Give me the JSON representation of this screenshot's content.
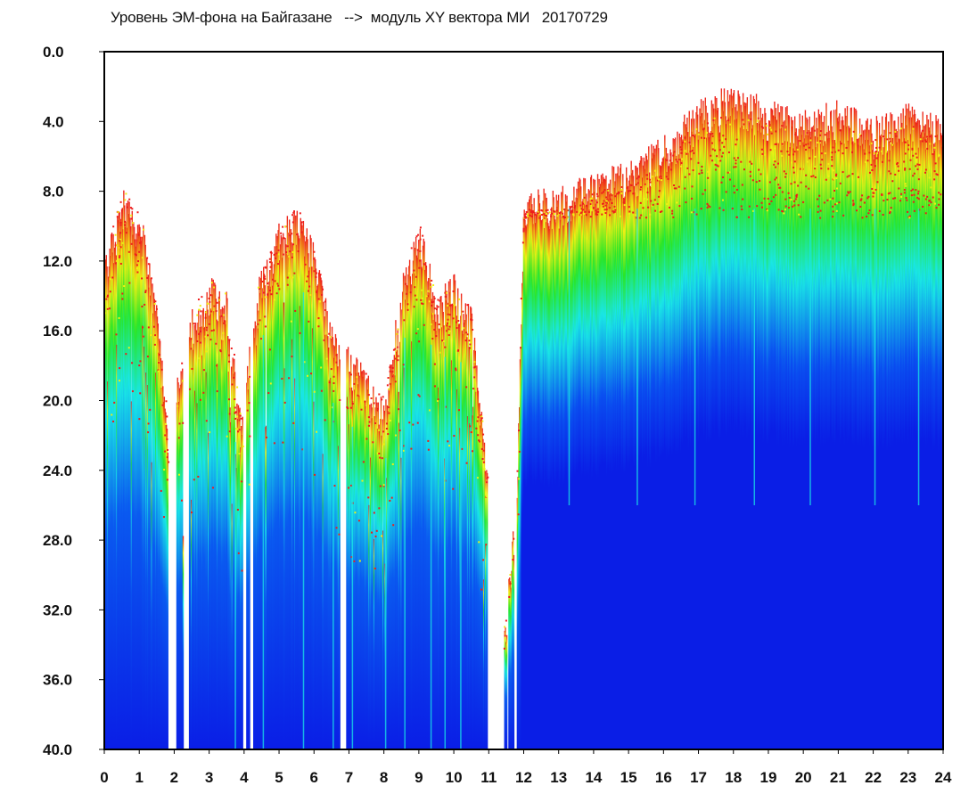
{
  "chart_title": "Уровень ЭМ-фона на Байгазане   -->  модуль XY вектора МИ   20170729",
  "colors": {
    "low": "#0a1ee6",
    "mid_low": "#19e6e6",
    "mid": "#28e628",
    "mid_high": "#f0f014",
    "high": "#ee1c1c",
    "background": "#ffffff",
    "frame": "#000000"
  },
  "chart_data": {
    "type": "heatmap",
    "title": "Уровень ЭМ-фона на Байгазане   -->  модуль XY вектора МИ   20170729",
    "xlabel": "",
    "ylabel": "",
    "xlim": [
      0,
      24
    ],
    "ylim": [
      0,
      40
    ],
    "y_inverted": true,
    "grid": false,
    "x_ticks": [
      "0",
      "1",
      "2",
      "3",
      "4",
      "5",
      "6",
      "7",
      "8",
      "9",
      "10",
      "11",
      "12",
      "13",
      "14",
      "15",
      "16",
      "17",
      "18",
      "19",
      "20",
      "21",
      "22",
      "23",
      "24"
    ],
    "y_ticks": [
      "0.0",
      "4.0",
      "8.0",
      "12.0",
      "16.0",
      "20.0",
      "24.0",
      "28.0",
      "32.0",
      "36.0",
      "40.0"
    ],
    "color_scale": [
      "blue",
      "cyan",
      "green",
      "yellow",
      "red"
    ],
    "signal_top_by_hour": {
      "x": [
        0,
        0.5,
        1,
        1.5,
        1.8,
        2.5,
        3,
        3.5,
        3.9,
        4.4,
        5,
        5.5,
        6,
        6.5,
        7.3,
        8,
        8.5,
        9,
        9.5,
        10,
        10.5,
        11,
        11.5,
        11.8,
        12,
        13,
        14,
        15,
        16,
        17,
        18,
        19,
        20,
        21,
        22,
        23,
        24
      ],
      "y": [
        13,
        9,
        10,
        16,
        22,
        16,
        14,
        15,
        22,
        14,
        11,
        10,
        12,
        17,
        19,
        21,
        14,
        11,
        15,
        14,
        16,
        26,
        33,
        25,
        9,
        9,
        8,
        7.5,
        6,
        4,
        3,
        4,
        4.5,
        4,
        5,
        4,
        5
      ]
    },
    "noisy_upper_level": 8.5,
    "blue_core_top_after_12h": 15
  }
}
